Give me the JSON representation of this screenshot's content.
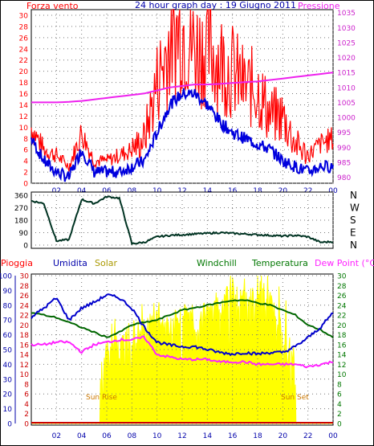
{
  "top": {
    "left_label": "Forza vento",
    "title": "24 hour graph day : 19 Giugno 2011",
    "right_label": "Pressione",
    "left_ticks": [
      0,
      2,
      4,
      6,
      8,
      10,
      12,
      14,
      16,
      18,
      20,
      22,
      24,
      26,
      28,
      30
    ],
    "right_ticks": [
      980,
      985,
      990,
      995,
      1000,
      1005,
      1010,
      1015,
      1020,
      1025,
      1030,
      1035
    ],
    "x_ticks": [
      "02",
      "04",
      "06",
      "08",
      "10",
      "12",
      "14",
      "16",
      "18",
      "20",
      "22",
      "00"
    ]
  },
  "middle": {
    "left_ticks": [
      0,
      90,
      180,
      270,
      360
    ],
    "right_ticks": [
      "N",
      "W",
      "S",
      "E",
      "N"
    ]
  },
  "bottom": {
    "header": {
      "pioggia": "Pioggia",
      "umidita": "Umidita",
      "solar": "Solar",
      "windchill": "Windchill",
      "temperatura": "Temperatura",
      "dewpoint": "Dew Point (°C)"
    },
    "left_ticks": [
      0,
      10,
      20,
      30,
      40,
      50,
      60,
      70,
      80,
      90,
      100
    ],
    "mid_ticks": [
      0,
      2,
      4,
      6,
      8,
      10,
      12,
      14,
      16,
      18,
      20,
      22,
      24,
      26,
      28,
      30
    ],
    "right_ticks": [
      0,
      2,
      4,
      6,
      8,
      10,
      12,
      14,
      16,
      18,
      20,
      22,
      24,
      26,
      28,
      30
    ],
    "sunrise_label": "Sun Rise",
    "sunset_label": "Sun Set",
    "x_ticks": [
      "02",
      "04",
      "06",
      "08",
      "10",
      "12",
      "14",
      "16",
      "18",
      "20",
      "22",
      "00"
    ]
  },
  "colors": {
    "wind_gust": "#ff0000",
    "wind_avg": "#0000dd",
    "pressure": "#ee22ee",
    "direction": "#003322",
    "humidity": "#0000cc",
    "solar": "#ffff00",
    "windchill": "#008800",
    "temperature": "#006600",
    "dewpoint": "#ff22ff",
    "rain": "#cc0000",
    "axis_text": "#ff0000",
    "axis_blue": "#0000aa",
    "axis_green": "#007700",
    "sun_label": "#cc7700"
  },
  "chart_data": [
    {
      "type": "line",
      "title": "24 hour graph day : 19 Giugno 2011",
      "x": [
        0,
        1,
        2,
        3,
        4,
        5,
        6,
        7,
        8,
        9,
        10,
        11,
        12,
        13,
        14,
        15,
        16,
        17,
        18,
        19,
        20,
        21,
        22,
        23,
        24
      ],
      "ylim": [
        0,
        31
      ],
      "y2lim": [
        978,
        1036
      ],
      "series": [
        {
          "name": "Forza vento",
          "axis": "left",
          "values": [
            10,
            6,
            5,
            3,
            9,
            4,
            4,
            5,
            6,
            8,
            18,
            25,
            28,
            24,
            24,
            22,
            20,
            17,
            17,
            12,
            12,
            7,
            5,
            7,
            8
          ]
        },
        {
          "axis": "left",
          "values": [
            8,
            4,
            2,
            1,
            6,
            2,
            2,
            2,
            3,
            4,
            9,
            14,
            16,
            16,
            14,
            11,
            9,
            8,
            7,
            6,
            4,
            3,
            2,
            3,
            3
          ]
        },
        {
          "name": "Pressione",
          "axis": "right",
          "values": [
            1005,
            1005,
            1005,
            1005.2,
            1005.5,
            1006,
            1006.5,
            1007,
            1007.5,
            1008,
            1009,
            1010,
            1010.5,
            1011,
            1011,
            1011.2,
            1011.5,
            1011.8,
            1012,
            1012.5,
            1013,
            1013.5,
            1014,
            1014.5,
            1015
          ]
        }
      ]
    },
    {
      "type": "line",
      "x": [
        0,
        1,
        2,
        3,
        4,
        5,
        6,
        7,
        8,
        9,
        10,
        11,
        12,
        13,
        14,
        15,
        16,
        17,
        18,
        19,
        20,
        21,
        22,
        23,
        24
      ],
      "ylim": [
        0,
        360
      ],
      "values": [
        320,
        300,
        30,
        40,
        330,
        300,
        350,
        340,
        10,
        20,
        60,
        70,
        75,
        80,
        85,
        90,
        85,
        80,
        75,
        70,
        65,
        70,
        60,
        20,
        25
      ]
    },
    {
      "type": "area",
      "x": [
        0,
        1,
        2,
        3,
        4,
        5,
        6,
        7,
        8,
        9,
        10,
        11,
        12,
        13,
        14,
        15,
        16,
        17,
        18,
        19,
        20,
        21,
        22,
        23,
        24
      ],
      "ylim": [
        0,
        100
      ],
      "series": [
        {
          "name": "Umidita",
          "axis": "left",
          "values": [
            72,
            78,
            85,
            70,
            78,
            82,
            87,
            85,
            78,
            65,
            55,
            53,
            52,
            52,
            50,
            48,
            47,
            48,
            47,
            48,
            48,
            52,
            58,
            65,
            75
          ]
        },
        {
          "name": "Solar",
          "axis": "mid",
          "values": [
            0,
            0,
            0,
            0,
            0,
            0,
            14,
            16,
            18,
            20,
            22,
            20,
            22,
            20,
            22,
            24,
            26,
            25,
            27,
            25,
            18,
            12,
            0,
            0,
            0
          ]
        },
        {
          "name": "Windchill",
          "axis": "right",
          "values": [
            22.5,
            22,
            21.5,
            20.5,
            19.5,
            18.5,
            17.5,
            18.5,
            20,
            20.5,
            21,
            22,
            23,
            23.5,
            24,
            24.5,
            25,
            25,
            24.5,
            24,
            23,
            22,
            20,
            19,
            17.5
          ]
        },
        {
          "name": "Temperatura",
          "axis": "right",
          "values": [
            22.5,
            22,
            21.5,
            20.5,
            19.5,
            18.5,
            17.5,
            18.5,
            20,
            20.5,
            21,
            22,
            23,
            23.5,
            24,
            24.5,
            25,
            25,
            24.5,
            24,
            23,
            22,
            20,
            19,
            17.5
          ]
        },
        {
          "name": "Dew Point (°C)",
          "axis": "right",
          "values": [
            16,
            16,
            16.5,
            16.5,
            14.5,
            16,
            16.5,
            17,
            17,
            17.5,
            14,
            13.5,
            13,
            13,
            13,
            12.5,
            12.5,
            12.5,
            12,
            12,
            12,
            12,
            11.5,
            12,
            12.5
          ]
        },
        {
          "name": "Pioggia",
          "axis": "left",
          "values": [
            0,
            0,
            0,
            0,
            0,
            0,
            0,
            0,
            0,
            0,
            0,
            0,
            0,
            0,
            0,
            0,
            0,
            0,
            0,
            0,
            0,
            0,
            0,
            0,
            0
          ]
        }
      ]
    }
  ]
}
